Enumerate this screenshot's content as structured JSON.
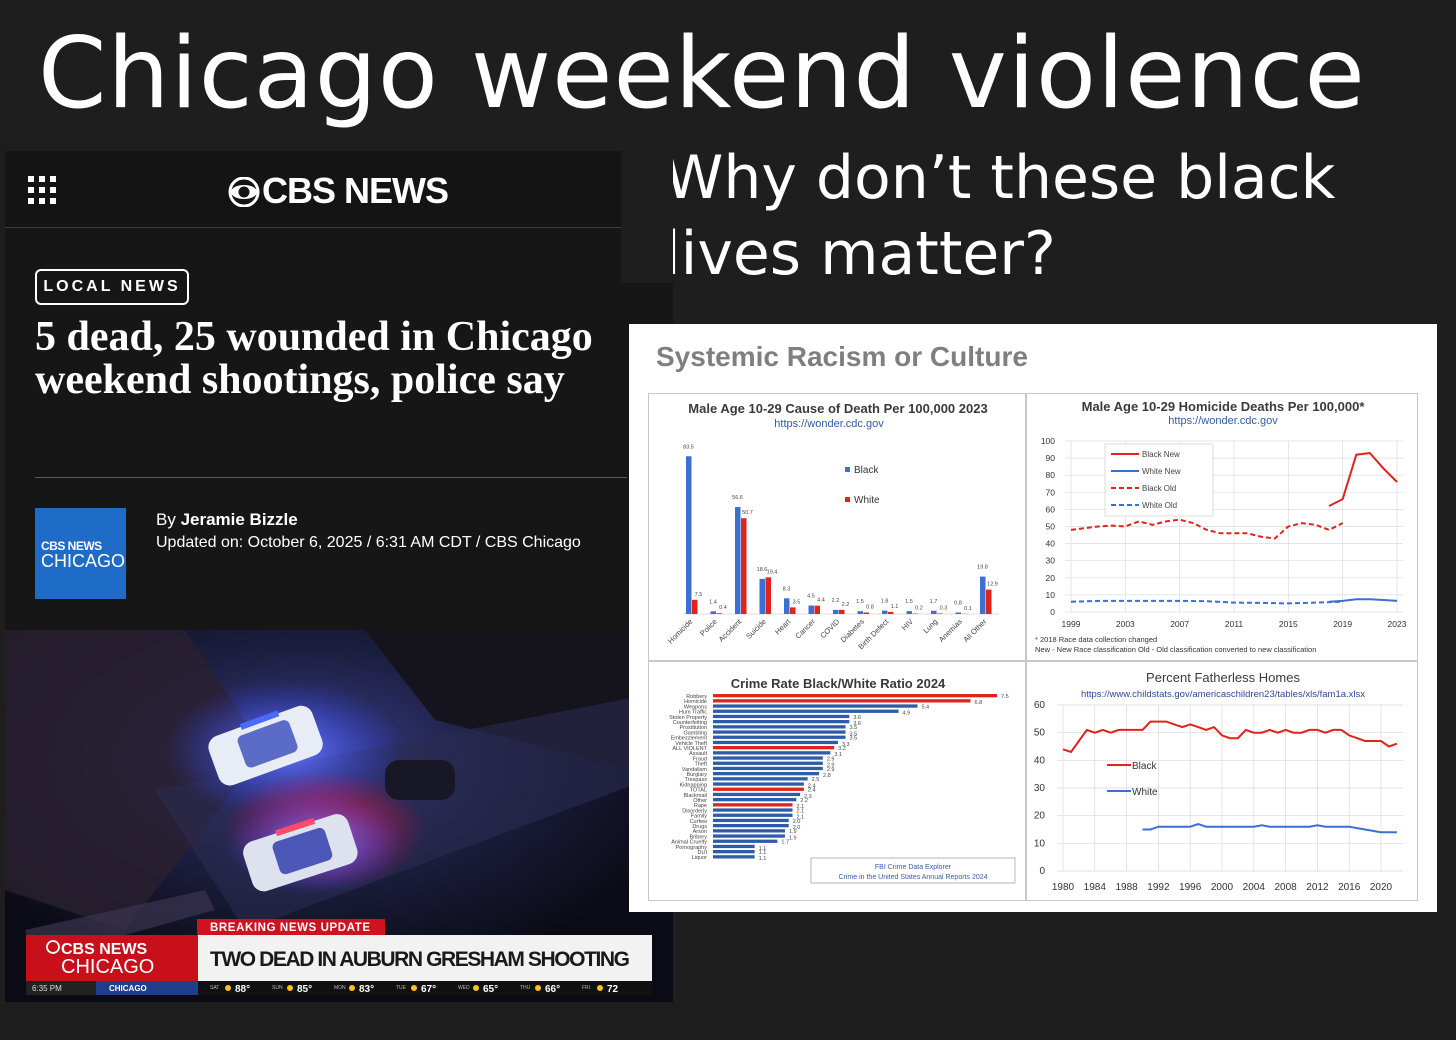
{
  "page": {
    "title": "Chicago weekend violence",
    "subtitle": "Why don’t these black lives matter?"
  },
  "article": {
    "brand": "CBS NEWS",
    "category": "LOCAL NEWS",
    "headline": "5 dead, 25 wounded in Chicago weekend shootings, police say",
    "author_prefix": "By ",
    "author": "Jeramie Bizzle",
    "updated": "Updated on: October 6, 2025 / 6:31 AM CDT / CBS Chicago",
    "author_logo_line1": "CBS NEWS",
    "author_logo_line2": "CHICAGO"
  },
  "broadcast": {
    "banner": "BREAKING NEWS UPDATE",
    "station_line1": "CBS NEWS",
    "station_line2": "CHICAGO",
    "lower_third": "TWO DEAD IN AUBURN GRESHAM SHOOTING",
    "time": "6:35 PM",
    "city": "CHICAGO",
    "weather": [
      {
        "day": "SAT",
        "temp": "88°"
      },
      {
        "day": "SUN",
        "temp": "85°"
      },
      {
        "day": "MON",
        "temp": "83°"
      },
      {
        "day": "TUE",
        "temp": "67°"
      },
      {
        "day": "WED",
        "temp": "65°"
      },
      {
        "day": "THU",
        "temp": "66°"
      },
      {
        "day": "FRI",
        "temp": "72"
      }
    ]
  },
  "infographic": {
    "title": "Systemic Racism or Culture"
  },
  "chart_data": [
    {
      "type": "bar",
      "title": "Male Age 10-29 Cause of Death Per 100,000 2023",
      "source": "https://wonder.cdc.gov",
      "categories": [
        "Homicide",
        "Police",
        "Accident",
        "Suicide",
        "Heart",
        "Cancer",
        "COVID",
        "Diabetes",
        "Birth Defect",
        "HIV",
        "Lung",
        "Anemias",
        "All Other"
      ],
      "series": [
        {
          "name": "Black",
          "color": "#3b6fd1",
          "values": [
            83.5,
            1.4,
            56.6,
            18.6,
            8.3,
            4.5,
            2.2,
            1.5,
            1.8,
            1.5,
            1.7,
            0.8,
            19.8
          ]
        },
        {
          "name": "White",
          "color": "#e2231a",
          "values": [
            7.5,
            0.4,
            50.7,
            19.4,
            3.5,
            4.4,
            2.2,
            0.8,
            1.1,
            0.2,
            0.3,
            0.1,
            12.9
          ]
        }
      ],
      "ylim": [
        0,
        90
      ]
    },
    {
      "type": "line",
      "title": "Male Age 10-29 Homicide Deaths Per 100,000*",
      "source": "https://wonder.cdc.gov",
      "x_ticks": [
        "1999",
        "2003",
        "2007",
        "2011",
        "2015",
        "2019",
        "2023"
      ],
      "y_ticks": [
        "100",
        "90",
        "80",
        "70",
        "60",
        "50",
        "40",
        "30",
        "20",
        "10",
        "0"
      ],
      "ylim": [
        0,
        100
      ],
      "series": [
        {
          "name": "Black New",
          "color": "#e2231a",
          "dashed": false,
          "points": [
            [
              2018,
              62
            ],
            [
              2019,
              66
            ],
            [
              2020,
              92
            ],
            [
              2021,
              93
            ],
            [
              2022,
              84
            ],
            [
              2023,
              76
            ]
          ]
        },
        {
          "name": "White New",
          "color": "#3b6fd1",
          "dashed": false,
          "points": [
            [
              2018,
              6
            ],
            [
              2019,
              6.5
            ],
            [
              2020,
              7.5
            ],
            [
              2021,
              7.5
            ],
            [
              2022,
              7
            ],
            [
              2023,
              6.5
            ]
          ]
        },
        {
          "name": "Black Old",
          "color": "#e2231a",
          "dashed": true,
          "points": [
            [
              1999,
              48
            ],
            [
              2000,
              49
            ],
            [
              2001,
              50
            ],
            [
              2002,
              50.5
            ],
            [
              2003,
              50
            ],
            [
              2004,
              53
            ],
            [
              2005,
              51
            ],
            [
              2006,
              53
            ],
            [
              2007,
              54
            ],
            [
              2008,
              52
            ],
            [
              2009,
              48
            ],
            [
              2010,
              46
            ],
            [
              2011,
              46
            ],
            [
              2012,
              46
            ],
            [
              2013,
              44
            ],
            [
              2014,
              43
            ],
            [
              2015,
              50
            ],
            [
              2016,
              52
            ],
            [
              2017,
              51
            ],
            [
              2018,
              48
            ],
            [
              2019,
              52
            ]
          ]
        },
        {
          "name": "White Old",
          "color": "#3b6fd1",
          "dashed": true,
          "points": [
            [
              1999,
              6
            ],
            [
              2001,
              6.5
            ],
            [
              2003,
              6.5
            ],
            [
              2005,
              6.5
            ],
            [
              2007,
              6.5
            ],
            [
              2009,
              6.3
            ],
            [
              2011,
              5.5
            ],
            [
              2013,
              5.3
            ],
            [
              2015,
              5
            ],
            [
              2017,
              5.5
            ],
            [
              2019,
              6
            ]
          ]
        }
      ],
      "notes": [
        "* 2018 Race data collection changed",
        "New - New Race classification   Old - Old classification converted to new classification"
      ]
    },
    {
      "type": "bar",
      "orientation": "horizontal",
      "title": "Crime Rate Black/White Ratio  2024",
      "source_lines": [
        "FBI Crime Data Explorer",
        "Crime in the United States Annual Reports 2024"
      ],
      "categories": [
        "Robbery",
        "Homicide",
        "Weapons",
        "Hum Traffic",
        "Stolen Property",
        "Counterfeiting",
        "Prostitution",
        "Gambling",
        "Embezzlement",
        "Vehicle Theft",
        "ALL VIOLENT",
        "Assault",
        "Fraud",
        "Theft",
        "Vandalism",
        "Burglary",
        "Trespass",
        "Kidnapping",
        "TOTAL",
        "Blackmail",
        "Other",
        "Rape",
        "Disorderly",
        "Family",
        "Curfew",
        "Drugs",
        "Arson",
        "Bribery",
        "Animal Cruelty",
        "Pornography",
        "DUI",
        "Liquor"
      ],
      "values": [
        7.5,
        6.8,
        5.4,
        4.9,
        3.6,
        3.6,
        3.5,
        3.5,
        3.5,
        3.3,
        3.2,
        3.1,
        2.9,
        2.9,
        2.9,
        2.8,
        2.5,
        2.4,
        2.4,
        2.3,
        2.2,
        2.1,
        2.1,
        2.1,
        2.0,
        2.0,
        1.9,
        1.9,
        1.7,
        1.1,
        1.1,
        1.1
      ],
      "highlight": [
        "Robbery",
        "Homicide",
        "ALL VIOLENT",
        "TOTAL",
        "Rape"
      ],
      "highlight_color": "#e2231a",
      "bar_color": "#2e5ca8"
    },
    {
      "type": "line",
      "title": "Percent Fatherless Homes",
      "source": "https://www.childstats.gov/americaschildren23/tables/xls/fam1a.xlsx",
      "x_ticks": [
        "1980",
        "1984",
        "1988",
        "1992",
        "1996",
        "2000",
        "2004",
        "2008",
        "2012",
        "2016",
        "2020"
      ],
      "y_ticks": [
        "60",
        "50",
        "40",
        "30",
        "20",
        "10",
        "0"
      ],
      "ylim": [
        0,
        60
      ],
      "series": [
        {
          "name": "Black",
          "color": "#e2231a",
          "points": [
            [
              1980,
              44
            ],
            [
              1981,
              43
            ],
            [
              1982,
              47
            ],
            [
              1983,
              51
            ],
            [
              1984,
              50
            ],
            [
              1985,
              51
            ],
            [
              1986,
              50
            ],
            [
              1987,
              51
            ],
            [
              1988,
              51
            ],
            [
              1989,
              51
            ],
            [
              1990,
              51
            ],
            [
              1991,
              54
            ],
            [
              1992,
              54
            ],
            [
              1993,
              54
            ],
            [
              1994,
              53
            ],
            [
              1995,
              52
            ],
            [
              1996,
              53
            ],
            [
              1997,
              52
            ],
            [
              1998,
              51
            ],
            [
              1999,
              52
            ],
            [
              2000,
              49
            ],
            [
              2001,
              48
            ],
            [
              2002,
              48
            ],
            [
              2003,
              51
            ],
            [
              2004,
              50
            ],
            [
              2005,
              50
            ],
            [
              2006,
              51
            ],
            [
              2007,
              50
            ],
            [
              2008,
              51
            ],
            [
              2009,
              50
            ],
            [
              2010,
              50
            ],
            [
              2011,
              51
            ],
            [
              2012,
              51
            ],
            [
              2013,
              50
            ],
            [
              2014,
              51
            ],
            [
              2015,
              51
            ],
            [
              2016,
              49
            ],
            [
              2017,
              48
            ],
            [
              2018,
              47
            ],
            [
              2019,
              47
            ],
            [
              2020,
              47
            ],
            [
              2021,
              45
            ],
            [
              2022,
              46
            ]
          ]
        },
        {
          "name": "White",
          "color": "#3b6fd1",
          "points": [
            [
              1990,
              15
            ],
            [
              1991,
              15
            ],
            [
              1992,
              16
            ],
            [
              1993,
              16
            ],
            [
              1994,
              16
            ],
            [
              1995,
              16
            ],
            [
              1996,
              16
            ],
            [
              1997,
              17
            ],
            [
              1998,
              16
            ],
            [
              1999,
              16
            ],
            [
              2000,
              16
            ],
            [
              2001,
              16
            ],
            [
              2002,
              16
            ],
            [
              2003,
              16
            ],
            [
              2004,
              16
            ],
            [
              2005,
              16.5
            ],
            [
              2006,
              16
            ],
            [
              2007,
              16
            ],
            [
              2008,
              16
            ],
            [
              2009,
              16
            ],
            [
              2010,
              16
            ],
            [
              2011,
              16
            ],
            [
              2012,
              16.5
            ],
            [
              2013,
              16
            ],
            [
              2014,
              16
            ],
            [
              2015,
              16
            ],
            [
              2016,
              16
            ],
            [
              2017,
              15.5
            ],
            [
              2018,
              15
            ],
            [
              2019,
              14.5
            ],
            [
              2020,
              14
            ],
            [
              2021,
              14
            ],
            [
              2022,
              14
            ]
          ]
        }
      ]
    }
  ]
}
